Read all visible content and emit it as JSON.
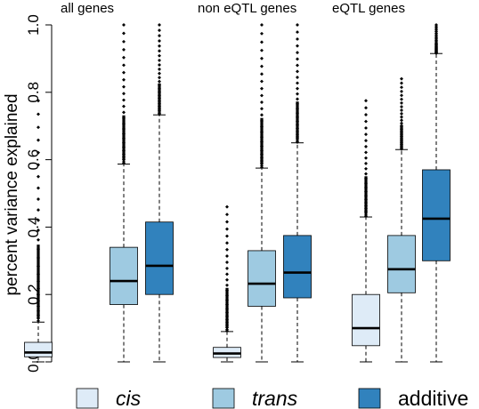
{
  "chart_data": {
    "type": "boxplot",
    "ylabel": "percent variance explained",
    "ylim": [
      0,
      1
    ],
    "yticks": [
      0.0,
      0.2,
      0.4,
      0.6,
      0.8,
      1.0
    ],
    "ytick_labels": [
      "0.0",
      "0.2",
      "0.4",
      "0.6",
      "0.8",
      "1.0"
    ],
    "groups": [
      "all genes",
      "non eQTL genes",
      "eQTL genes"
    ],
    "series": [
      {
        "name": "cis",
        "color": "#deebf7"
      },
      {
        "name": "trans",
        "color": "#9ecae1"
      },
      {
        "name": "additive",
        "color": "#3182bd"
      }
    ],
    "boxes": [
      {
        "group": 0,
        "series": 0,
        "whisker_low": 0.0,
        "q1": 0.015,
        "median": 0.028,
        "q3": 0.058,
        "whisker_high": 0.118,
        "outlier_max": 0.775
      },
      {
        "group": 0,
        "series": 1,
        "whisker_low": 0.0,
        "q1": 0.17,
        "median": 0.24,
        "q3": 0.34,
        "whisker_high": 0.587,
        "outlier_max": 1.0
      },
      {
        "group": 0,
        "series": 2,
        "whisker_low": 0.0,
        "q1": 0.2,
        "median": 0.285,
        "q3": 0.415,
        "whisker_high": 0.733,
        "outlier_max": 1.0
      },
      {
        "group": 1,
        "series": 0,
        "whisker_low": 0.0,
        "q1": 0.013,
        "median": 0.025,
        "q3": 0.043,
        "whisker_high": 0.09,
        "outlier_max": 0.46
      },
      {
        "group": 1,
        "series": 1,
        "whisker_low": 0.0,
        "q1": 0.165,
        "median": 0.232,
        "q3": 0.33,
        "whisker_high": 0.575,
        "outlier_max": 1.0
      },
      {
        "group": 1,
        "series": 2,
        "whisker_low": 0.0,
        "q1": 0.19,
        "median": 0.265,
        "q3": 0.375,
        "whisker_high": 0.65,
        "outlier_max": 1.0
      },
      {
        "group": 2,
        "series": 0,
        "whisker_low": 0.0,
        "q1": 0.048,
        "median": 0.1,
        "q3": 0.2,
        "whisker_high": 0.43,
        "outlier_max": 0.775
      },
      {
        "group": 2,
        "series": 1,
        "whisker_low": 0.0,
        "q1": 0.205,
        "median": 0.275,
        "q3": 0.375,
        "whisker_high": 0.63,
        "outlier_max": 0.84
      },
      {
        "group": 2,
        "series": 2,
        "whisker_low": 0.0,
        "q1": 0.3,
        "median": 0.425,
        "q3": 0.57,
        "whisker_high": 0.915,
        "outlier_max": 1.0
      }
    ],
    "legend": {
      "placement": "bottom",
      "labels": [
        "cis",
        "trans",
        "additive"
      ]
    },
    "grid": false
  }
}
